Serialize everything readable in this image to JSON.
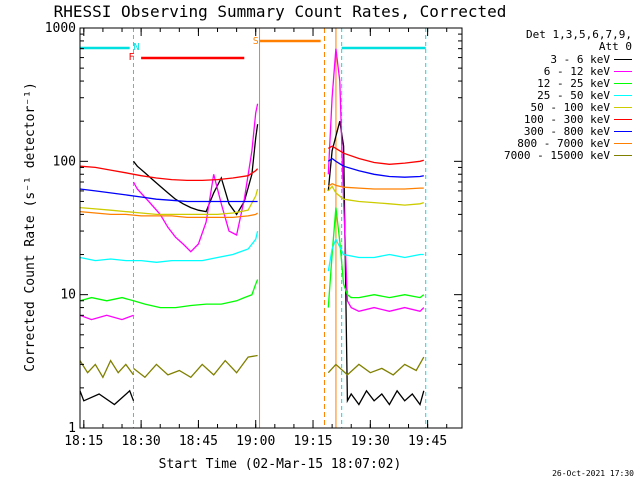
{
  "chart_data": {
    "type": "line",
    "title": "RHESSI Observing Summary Count Rates, Corrected",
    "xlabel": "Start Time (02-Mar-15 18:07:02)",
    "ylabel": "Corrected Count Rate (s⁻¹ detector⁻¹)",
    "yscale": "log",
    "xlim_min": [
      7.0,
      107.0
    ],
    "ylim": [
      1,
      1000
    ],
    "x_ticks_min": [
      8,
      23,
      38,
      53,
      68,
      83,
      98
    ],
    "x_tick_labels": [
      "18:15",
      "18:30",
      "18:45",
      "19:00",
      "19:15",
      "19:30",
      "19:45"
    ],
    "y_ticks": [
      1,
      10,
      100,
      1000
    ],
    "y_tick_labels": [
      "1",
      "10",
      "100",
      "1000"
    ],
    "legend_header": [
      "Det 1,3,5,6,7,9,",
      "Att 0"
    ],
    "series": [
      {
        "name": "3 - 6 keV",
        "color": "#000000",
        "segments": [
          {
            "x": [
              7,
              8,
              12,
              16,
              20,
              21
            ],
            "y": [
              1.9,
              1.6,
              1.8,
              1.5,
              1.9,
              1.6
            ]
          },
          {
            "x": [
              21,
              22,
              24,
              26,
              28,
              30,
              32,
              34,
              36,
              38,
              40,
              42,
              44,
              46,
              48,
              50,
              52,
              53,
              53.5
            ],
            "y": [
              100,
              92,
              82,
              73,
              65,
              58,
              52,
              48,
              45,
              43,
              42,
              58,
              75,
              48,
              40,
              50,
              80,
              150,
              190
            ]
          },
          {
            "x": [
              72,
              73,
              75,
              76,
              77,
              78,
              80,
              82,
              84,
              86,
              88,
              90,
              92,
              94,
              96,
              97
            ],
            "y": [
              60,
              120,
              200,
              130,
              1.6,
              1.8,
              1.5,
              1.9,
              1.6,
              1.8,
              1.5,
              1.9,
              1.6,
              1.8,
              1.5,
              1.9
            ]
          }
        ]
      },
      {
        "name": "6 - 12 keV",
        "color": "#ff00ff",
        "segments": [
          {
            "x": [
              7,
              10,
              14,
              18,
              21
            ],
            "y": [
              7,
              6.5,
              7,
              6.5,
              7
            ]
          },
          {
            "x": [
              21,
              22,
              25,
              28,
              30,
              32,
              34,
              36,
              38,
              40,
              42,
              44,
              46,
              48,
              50,
              52,
              53,
              53.5
            ],
            "y": [
              70,
              62,
              50,
              40,
              32,
              27,
              24,
              21,
              24,
              35,
              80,
              48,
              30,
              28,
              52,
              120,
              230,
              270
            ]
          },
          {
            "x": [
              72,
              73,
              74,
              75,
              76,
              77,
              78,
              80,
              84,
              88,
              92,
              96,
              97
            ],
            "y": [
              80,
              300,
              700,
              400,
              50,
              9,
              8,
              7.5,
              8,
              7.5,
              8,
              7.5,
              8
            ]
          }
        ]
      },
      {
        "name": "12 - 25 keV",
        "color": "#00ff00",
        "segments": [
          {
            "x": [
              7,
              10,
              14,
              18,
              21
            ],
            "y": [
              9,
              9.5,
              9,
              9.5,
              9
            ]
          },
          {
            "x": [
              21,
              24,
              28,
              32,
              36,
              40,
              44,
              48,
              50,
              52,
              53,
              53.5
            ],
            "y": [
              9,
              8.5,
              8,
              8,
              8.3,
              8.5,
              8.5,
              9,
              9.5,
              10,
              12,
              13
            ]
          },
          {
            "x": [
              72,
              73,
              74,
              75,
              76,
              77,
              78,
              80,
              84,
              88,
              92,
              96,
              97
            ],
            "y": [
              8,
              20,
              45,
              25,
              12,
              10,
              9.5,
              9.5,
              10,
              9.5,
              10,
              9.5,
              10
            ]
          }
        ]
      },
      {
        "name": "25 - 50 keV",
        "color": "#00ffff",
        "segments": [
          {
            "x": [
              7,
              11,
              15,
              19,
              23,
              27,
              31,
              35,
              39,
              43,
              47,
              51,
              53,
              53.5
            ],
            "y": [
              19,
              18,
              18.5,
              18,
              18,
              17.5,
              18,
              18,
              18,
              19,
              20,
              22,
              26,
              30
            ]
          },
          {
            "x": [
              72,
              73,
              74,
              76,
              80,
              84,
              88,
              92,
              96,
              97
            ],
            "y": [
              15,
              22,
              26,
              20,
              19,
              19,
              20,
              19,
              20,
              20
            ]
          }
        ]
      },
      {
        "name": "50 - 100 keV",
        "color": "#cccc00",
        "segments": [
          {
            "x": [
              7,
              11,
              15,
              19,
              23,
              27,
              31,
              35,
              39,
              43,
              47,
              51,
              53,
              53.5
            ],
            "y": [
              45,
              44,
              43,
              42,
              41,
              40,
              40,
              40,
              40,
              40,
              41,
              43,
              55,
              62
            ]
          },
          {
            "x": [
              72,
              73,
              74,
              76,
              80,
              84,
              88,
              92,
              96,
              97
            ],
            "y": [
              60,
              65,
              58,
              52,
              50,
              49,
              48,
              47,
              48,
              49
            ]
          }
        ]
      },
      {
        "name": "100 - 300 keV",
        "color": "#ff0000",
        "segments": [
          {
            "x": [
              7,
              11,
              15,
              19,
              23,
              27,
              31,
              35,
              39,
              43,
              47,
              51,
              53,
              53.5
            ],
            "y": [
              92,
              90,
              86,
              82,
              78,
              75,
              73,
              72,
              72,
              73,
              75,
              78,
              85,
              88
            ]
          },
          {
            "x": [
              72,
              73,
              74,
              76,
              80,
              84,
              88,
              92,
              96,
              97
            ],
            "y": [
              125,
              130,
              125,
              115,
              105,
              98,
              95,
              97,
              100,
              102
            ]
          }
        ]
      },
      {
        "name": "300 - 800 keV",
        "color": "#0000ff",
        "segments": [
          {
            "x": [
              7,
              11,
              15,
              19,
              23,
              27,
              31,
              35,
              39,
              43,
              47,
              51,
              53,
              53.5
            ],
            "y": [
              62,
              60,
              58,
              56,
              54,
              52,
              51,
              50,
              50,
              50,
              50,
              50,
              50,
              50
            ]
          },
          {
            "x": [
              72,
              73,
              74,
              76,
              80,
              84,
              88,
              92,
              96,
              97
            ],
            "y": [
              100,
              105,
              100,
              92,
              85,
              80,
              77,
              76,
              77,
              78
            ]
          }
        ]
      },
      {
        "name": "800 - 7000 keV",
        "color": "#ff8000",
        "segments": [
          {
            "x": [
              7,
              11,
              15,
              19,
              23,
              27,
              31,
              35,
              39,
              43,
              47,
              51,
              53,
              53.5
            ],
            "y": [
              42,
              41,
              40,
              40,
              39,
              39,
              39,
              38,
              38,
              38,
              38,
              39,
              40,
              41
            ]
          },
          {
            "x": [
              72,
              73,
              74,
              76,
              80,
              84,
              88,
              92,
              96,
              97
            ],
            "y": [
              65,
              68,
              66,
              64,
              63,
              62,
              62,
              62,
              63,
              63
            ]
          }
        ]
      },
      {
        "name": "7000 - 15000 keV",
        "color": "#808000",
        "segments": [
          {
            "x": [
              7,
              9,
              11,
              13,
              15,
              17,
              19,
              21
            ],
            "y": [
              3.2,
              2.6,
              3.0,
              2.4,
              3.2,
              2.6,
              3.0,
              2.5
            ]
          },
          {
            "x": [
              21,
              24,
              27,
              30,
              33,
              36,
              39,
              42,
              45,
              48,
              51,
              53.5
            ],
            "y": [
              2.8,
              2.4,
              3.0,
              2.5,
              2.7,
              2.4,
              3.0,
              2.5,
              3.2,
              2.6,
              3.4,
              3.5
            ]
          },
          {
            "x": [
              72,
              74,
              77,
              80,
              83,
              86,
              89,
              92,
              95,
              97
            ],
            "y": [
              2.6,
              3.0,
              2.5,
              3.0,
              2.6,
              2.8,
              2.5,
              3.0,
              2.7,
              3.4
            ]
          }
        ]
      }
    ],
    "annotations": [
      {
        "label": "N",
        "color": "#00e0e0"
      },
      {
        "label": "F",
        "color": "#ff0000"
      },
      {
        "label": "S",
        "color": "#ff8000"
      }
    ]
  },
  "footer": "26-Oct-2021 17:30"
}
